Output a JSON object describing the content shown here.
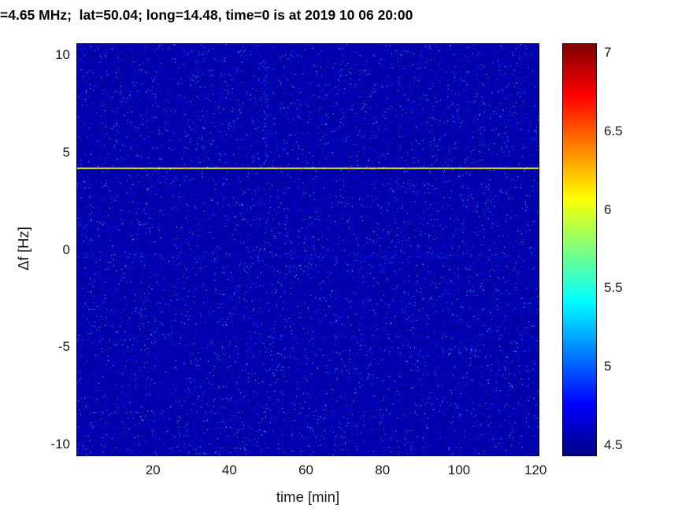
{
  "chart_data": {
    "type": "heatmap",
    "title": "=4.65 MHz;  lat=50.04; long=14.48, time=0 is at 2019 10 06 20:00",
    "xlabel": "time [min]",
    "ylabel": "Δf [Hz]",
    "xlim": [
      0,
      121
    ],
    "ylim": [
      -10.6,
      10.6
    ],
    "xticks": [
      20,
      40,
      60,
      80,
      100,
      120
    ],
    "yticks": [
      10,
      5,
      0,
      -5,
      -10
    ],
    "clim": [
      4.43,
      7.06
    ],
    "colorbar_ticks": [
      4.5,
      5,
      5.5,
      6,
      6.5,
      7
    ],
    "colormap": "jet",
    "colormap_stops": [
      {
        "t": 0,
        "color": "#000085"
      },
      {
        "t": 0.125,
        "color": "#0000ff"
      },
      {
        "t": 0.375,
        "color": "#00ffff"
      },
      {
        "t": 0.625,
        "color": "#ffff00"
      },
      {
        "t": 0.875,
        "color": "#ff0000"
      },
      {
        "t": 1,
        "color": "#800000"
      }
    ],
    "background_value": 4.5,
    "noise": {
      "seed": 20191006,
      "base": 4.47,
      "scale": 0.07,
      "speckle_prob": 0.015,
      "speckle_min": 0.2,
      "speckle_range": 0.9
    },
    "features": [
      {
        "kind": "carrier-line",
        "label": "transmitter carrier line",
        "y": 4.2,
        "value": 6.05,
        "jitter": 0.55,
        "halfwidth": 0.055
      },
      {
        "kind": "band",
        "label": "faint noise band",
        "y": -0.35,
        "halfwidth": 0.12,
        "density": 0.1,
        "boost": 0.45
      },
      {
        "kind": "band",
        "label": "faint noise band",
        "y": -4.55,
        "halfwidth": 0.12,
        "density": 0.07,
        "boost": 0.4
      },
      {
        "kind": "band",
        "label": "faint noise band",
        "y": -5.15,
        "halfwidth": 0.1,
        "density": 0.05,
        "boost": 0.35
      },
      {
        "kind": "vstreak",
        "label": "faint vertical streak",
        "x": 49.5,
        "halfwidth": 0.5,
        "y_range": [
          4.3,
          9.8
        ],
        "density": 0.18,
        "boost": 0.55
      },
      {
        "kind": "vstreak",
        "label": "faint vertical streak",
        "x": 70,
        "halfwidth": 0.4,
        "y_range": [
          3.0,
          5.8
        ],
        "density": 0.1,
        "boost": 0.4
      },
      {
        "kind": "vstreak",
        "label": "faint vertical streak",
        "x": 96,
        "halfwidth": 0.4,
        "y_range": [
          -10.6,
          1.0
        ],
        "density": 0.07,
        "boost": 0.35
      }
    ]
  }
}
